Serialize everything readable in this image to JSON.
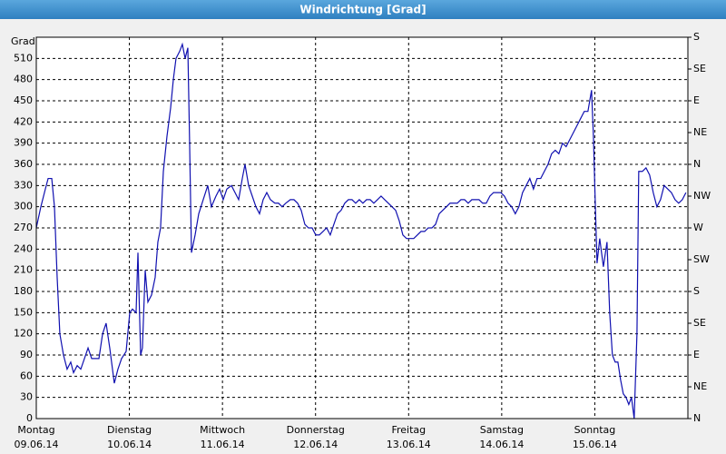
{
  "chart_data": {
    "type": "line",
    "title": "Windrichtung [Grad]",
    "y_label": "Grad",
    "xlim": [
      0,
      7
    ],
    "xticks": [
      {
        "value": 0,
        "label": "Montag",
        "date": "09.06.14"
      },
      {
        "value": 1,
        "label": "Dienstag",
        "date": "10.06.14"
      },
      {
        "value": 2,
        "label": "Mittwoch",
        "date": "11.06.14"
      },
      {
        "value": 3,
        "label": "Donnerstag",
        "date": "12.06.14"
      },
      {
        "value": 4,
        "label": "Freitag",
        "date": "13.06.14"
      },
      {
        "value": 5,
        "label": "Samstag",
        "date": "14.06.14"
      },
      {
        "value": 6,
        "label": "Sonntag",
        "date": "15.06.14"
      }
    ],
    "ylim": [
      0,
      540
    ],
    "yticks": [
      0,
      30,
      60,
      90,
      120,
      150,
      180,
      210,
      240,
      270,
      300,
      330,
      360,
      390,
      420,
      450,
      480,
      510
    ],
    "y2lim": [
      0,
      540
    ],
    "y2ticks": [
      {
        "value": 0,
        "label": "N"
      },
      {
        "value": 45,
        "label": "NE"
      },
      {
        "value": 90,
        "label": "E"
      },
      {
        "value": 135,
        "label": "SE"
      },
      {
        "value": 180,
        "label": "S"
      },
      {
        "value": 225,
        "label": "SW"
      },
      {
        "value": 270,
        "label": "W"
      },
      {
        "value": 315,
        "label": "NW"
      },
      {
        "value": 360,
        "label": "N"
      },
      {
        "value": 405,
        "label": "NE"
      },
      {
        "value": 450,
        "label": "E"
      },
      {
        "value": 495,
        "label": "SE"
      },
      {
        "value": 540,
        "label": "S"
      }
    ],
    "grid": true,
    "x": [
      0,
      0.049,
      0.097,
      0.127,
      0.166,
      0.195,
      0.224,
      0.253,
      0.292,
      0.331,
      0.37,
      0.4,
      0.439,
      0.478,
      0.517,
      0.556,
      0.595,
      0.634,
      0.673,
      0.712,
      0.75,
      0.789,
      0.838,
      0.877,
      0.916,
      0.965,
      1.004,
      1.033,
      1.072,
      1.092,
      1.121,
      1.14,
      1.17,
      1.199,
      1.238,
      1.277,
      1.306,
      1.335,
      1.365,
      1.404,
      1.443,
      1.472,
      1.501,
      1.54,
      1.569,
      1.599,
      1.628,
      1.647,
      1.667,
      1.706,
      1.745,
      1.793,
      1.842,
      1.881,
      1.93,
      1.969,
      2.008,
      2.047,
      2.096,
      2.135,
      2.174,
      2.213,
      2.242,
      2.281,
      2.32,
      2.359,
      2.398,
      2.437,
      2.476,
      2.515,
      2.563,
      2.602,
      2.641,
      2.68,
      2.729,
      2.768,
      2.807,
      2.846,
      2.885,
      2.924,
      2.963,
      3.002,
      3.041,
      3.08,
      3.119,
      3.158,
      3.197,
      3.236,
      3.275,
      3.314,
      3.353,
      3.392,
      3.431,
      3.47,
      3.509,
      3.548,
      3.587,
      3.626,
      3.665,
      3.704,
      3.743,
      3.782,
      3.821,
      3.86,
      3.899,
      3.938,
      3.977,
      4.016,
      4.055,
      4.094,
      4.133,
      4.172,
      4.211,
      4.25,
      4.289,
      4.328,
      4.367,
      4.406,
      4.445,
      4.484,
      4.523,
      4.562,
      4.601,
      4.64,
      4.679,
      4.717,
      4.756,
      4.795,
      4.834,
      4.873,
      4.912,
      4.951,
      4.99,
      5.029,
      5.068,
      5.107,
      5.146,
      5.185,
      5.224,
      5.263,
      5.302,
      5.341,
      5.38,
      5.419,
      5.458,
      5.497,
      5.536,
      5.575,
      5.614,
      5.653,
      5.692,
      5.731,
      5.77,
      5.809,
      5.848,
      5.887,
      5.926,
      5.965,
      5.985,
      6.004,
      6.024,
      6.053,
      6.092,
      6.131,
      6.16,
      6.189,
      6.219,
      6.248,
      6.277,
      6.306,
      6.336,
      6.365,
      6.394,
      6.423,
      6.453,
      6.472,
      6.511,
      6.55,
      6.589,
      6.628,
      6.667,
      6.706,
      6.745,
      6.784,
      6.823,
      6.862,
      6.901,
      6.94,
      6.979
    ],
    "series": [
      {
        "color": "#1010b0",
        "values": [
          270,
          300,
          325,
          340,
          340,
          300,
          200,
          120,
          90,
          70,
          80,
          65,
          75,
          70,
          85,
          100,
          85,
          85,
          85,
          120,
          135,
          100,
          50,
          70,
          85,
          95,
          150,
          155,
          150,
          235,
          90,
          100,
          210,
          165,
          175,
          200,
          250,
          270,
          350,
          400,
          440,
          480,
          510,
          520,
          530,
          510,
          525,
          390,
          235,
          260,
          290,
          310,
          330,
          300,
          315,
          325,
          310,
          325,
          330,
          320,
          310,
          340,
          360,
          330,
          315,
          300,
          290,
          310,
          320,
          310,
          305,
          305,
          300,
          305,
          310,
          310,
          305,
          295,
          275,
          270,
          270,
          260,
          260,
          265,
          270,
          260,
          275,
          290,
          295,
          305,
          310,
          310,
          305,
          310,
          305,
          310,
          310,
          305,
          310,
          315,
          310,
          305,
          300,
          295,
          280,
          260,
          255,
          255,
          255,
          260,
          265,
          265,
          270,
          270,
          275,
          290,
          295,
          300,
          305,
          305,
          305,
          310,
          310,
          305,
          310,
          310,
          310,
          305,
          305,
          315,
          320,
          320,
          320,
          315,
          305,
          300,
          290,
          300,
          320,
          330,
          340,
          325,
          340,
          340,
          350,
          360,
          375,
          380,
          375,
          390,
          385,
          395,
          405,
          415,
          425,
          435,
          435,
          465,
          400,
          310,
          220,
          255,
          215,
          250,
          150,
          90,
          80,
          80,
          55,
          35,
          30,
          20,
          30,
          0,
          120,
          350,
          350,
          355,
          345,
          320,
          300,
          310,
          330,
          325,
          320,
          310,
          305,
          310,
          320
        ]
      }
    ]
  }
}
